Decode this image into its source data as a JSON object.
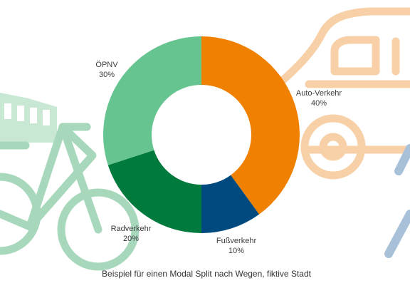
{
  "chart_data": {
    "type": "pie",
    "variant": "donut",
    "categories": [
      "Auto-Verkehr",
      "Fußverkehr",
      "Radverkehr",
      "ÖPNV"
    ],
    "values": [
      40,
      10,
      20,
      30
    ],
    "value_labels": [
      "40%",
      "10%",
      "20%",
      "30%"
    ],
    "colors": [
      "#f08000",
      "#004a80",
      "#007a3d",
      "#66c490"
    ],
    "caption": "Beispiel für einen Modal Split nach Wegen, fiktive Stadt"
  },
  "background_icons": {
    "names": [
      "tram-icon",
      "bicycle-icon",
      "car-icon",
      "walking-icon"
    ],
    "colors": {
      "tram": "#c8e8d4",
      "bicycle": "#a8d8bc",
      "car": "#f8d0a8",
      "walking": "#a8c0d8"
    }
  }
}
